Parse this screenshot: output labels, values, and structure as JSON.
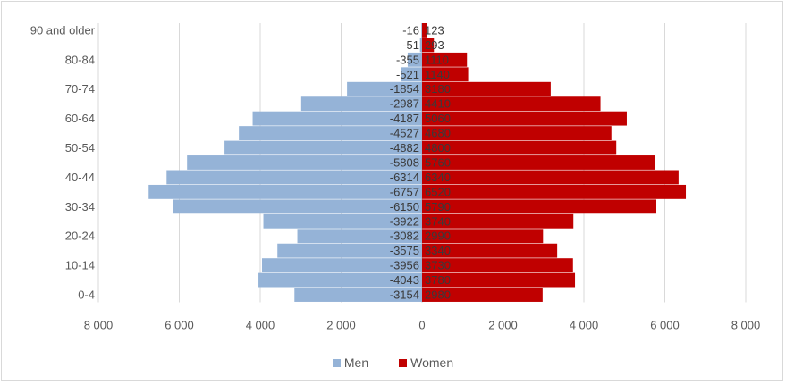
{
  "chart_data": {
    "type": "bar",
    "orientation": "horizontal",
    "subtype": "population-pyramid",
    "categories": [
      "0-4",
      "5-9",
      "10-14",
      "15-19",
      "20-24",
      "25-29",
      "30-34",
      "35-39",
      "40-44",
      "45-49",
      "50-54",
      "55-59",
      "60-64",
      "65-69",
      "70-74",
      "75-79",
      "80-84",
      "85-89",
      "90 and older"
    ],
    "category_labels_shown": [
      "0-4",
      "",
      "10-14",
      "",
      "20-24",
      "",
      "30-34",
      "",
      "40-44",
      "",
      "50-54",
      "",
      "60-64",
      "",
      "70-74",
      "",
      "80-84",
      "",
      "90 and older"
    ],
    "series": [
      {
        "name": "Men",
        "color": "#95b3d7",
        "values": [
          -3154,
          -4043,
          -3956,
          -3575,
          -3082,
          -3922,
          -6150,
          -6757,
          -6314,
          -5808,
          -4882,
          -4527,
          -4187,
          -2987,
          -1854,
          -521,
          -355,
          -51,
          -16
        ]
      },
      {
        "name": "Women",
        "color": "#c00000",
        "values": [
          2980,
          3780,
          3730,
          3340,
          2990,
          3740,
          5790,
          6520,
          6340,
          5760,
          4800,
          4680,
          5060,
          4410,
          3180,
          1140,
          1110,
          293,
          123
        ]
      }
    ],
    "xlim": [
      -8000,
      8000
    ],
    "xticks": [
      -8000,
      -6000,
      -4000,
      -2000,
      0,
      2000,
      4000,
      6000,
      8000
    ],
    "xtick_labels": [
      "8 000",
      "6 000",
      "4 000",
      "2 000",
      "0",
      "2 000",
      "4 000",
      "6 000",
      "8 000"
    ],
    "gridlines": true,
    "legend_position": "bottom",
    "title": "",
    "xlabel": "",
    "ylabel": ""
  }
}
